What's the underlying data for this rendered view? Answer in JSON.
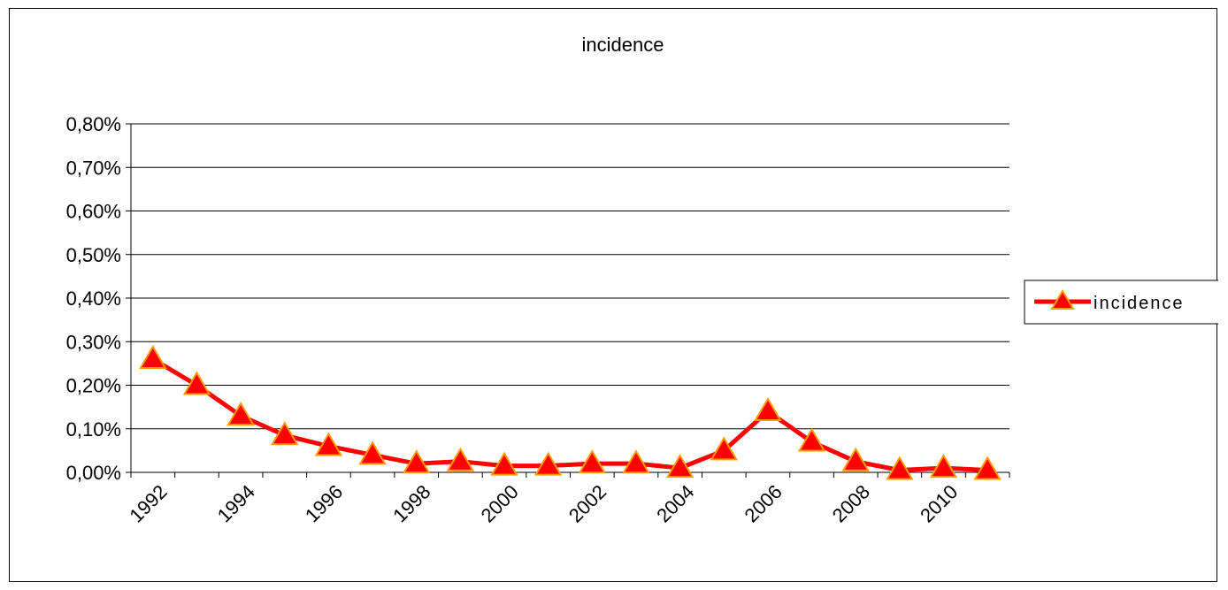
{
  "chart_data": {
    "type": "line",
    "title": "incidence",
    "xlabel": "",
    "ylabel": "",
    "x": [
      1992,
      1993,
      1994,
      1995,
      1996,
      1997,
      1998,
      1999,
      2000,
      2001,
      2002,
      2003,
      2004,
      2005,
      2006,
      2007,
      2008,
      2009,
      2010,
      2011
    ],
    "x_tick_labels": [
      "1992",
      "1994",
      "1996",
      "1998",
      "2000",
      "2002",
      "2004",
      "2006",
      "2008",
      "2010"
    ],
    "y_tick_labels": [
      "0,00%",
      "0,10%",
      "0,20%",
      "0,30%",
      "0,40%",
      "0,50%",
      "0,60%",
      "0,70%",
      "0,80%"
    ],
    "ylim": [
      0,
      0.8
    ],
    "y_unit": "%",
    "grid": true,
    "legend_position": "right",
    "series": [
      {
        "name": "incidence",
        "color": "#ff0000",
        "marker": "triangle",
        "marker_fill": "#ff0000",
        "marker_edge": "#ff9900",
        "values": [
          0.26,
          0.2,
          0.13,
          0.085,
          0.06,
          0.04,
          0.02,
          0.025,
          0.015,
          0.015,
          0.02,
          0.02,
          0.01,
          0.05,
          0.14,
          0.07,
          0.025,
          0.005,
          0.01,
          0.005
        ]
      }
    ]
  }
}
